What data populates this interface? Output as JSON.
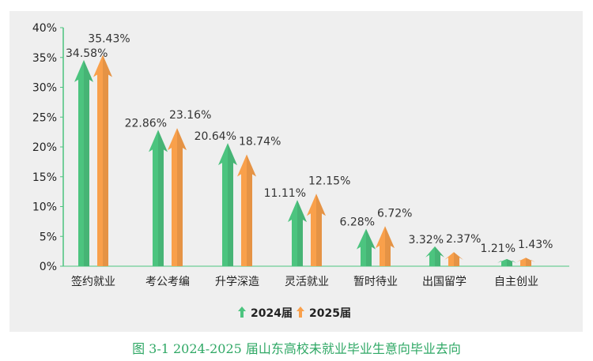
{
  "chart_data": {
    "type": "bar",
    "title": "",
    "xlabel": "",
    "ylabel": "",
    "ylim": [
      0,
      40
    ],
    "yticks": [
      "0%",
      "5%",
      "10%",
      "15%",
      "20%",
      "25%",
      "30%",
      "35%",
      "40%"
    ],
    "categories": [
      "签约就业",
      "考公考编",
      "升学深造",
      "灵活就业",
      "暂时待业",
      "出国留学",
      "自主创业"
    ],
    "series": [
      {
        "name": "2024届",
        "color": "#4cc47f",
        "values": [
          34.58,
          22.86,
          20.64,
          11.11,
          6.28,
          3.32,
          1.21
        ],
        "labels": [
          "34.58%",
          "22.86%",
          "20.64%",
          "11.11%",
          "6.28%",
          "3.32%",
          "1.21%"
        ]
      },
      {
        "name": "2025届",
        "color": "#f9a04b",
        "values": [
          35.43,
          23.16,
          18.74,
          12.15,
          6.72,
          2.37,
          1.43
        ],
        "labels": [
          "35.43%",
          "23.16%",
          "18.74%",
          "12.15%",
          "6.72%",
          "2.37%",
          "1.43%"
        ]
      }
    ],
    "legend": "bottom-center",
    "grid": false
  },
  "caption": "图 3-1 2024-2025 届山东高校未就业毕业生意向毕业去向"
}
